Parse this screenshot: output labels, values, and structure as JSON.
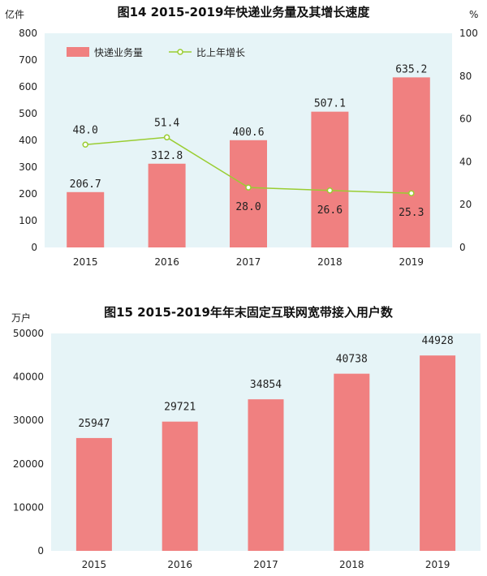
{
  "chart_data": [
    {
      "type": "bar+line",
      "title": "图14   2015-2019年快递业务量及其增长速度",
      "left_unit": "亿件",
      "right_unit": "%",
      "categories": [
        "2015",
        "2016",
        "2017",
        "2018",
        "2019"
      ],
      "series": [
        {
          "name": "快递业务量",
          "type": "bar",
          "axis": "left",
          "color": "#f08080",
          "values": [
            206.7,
            312.8,
            400.6,
            507.1,
            635.2
          ],
          "labels": [
            "206.7",
            "312.8",
            "400.6",
            "507.1",
            "635.2"
          ]
        },
        {
          "name": "比上年增长",
          "type": "line",
          "axis": "right",
          "color": "#9acd32",
          "values": [
            48.0,
            51.4,
            28.0,
            26.6,
            25.3
          ],
          "labels": [
            "48.0",
            "51.4",
            "28.0",
            "26.6",
            "25.3"
          ]
        }
      ],
      "ylim_left": [
        0,
        800
      ],
      "yticks_left": [
        "0",
        "100",
        "200",
        "300",
        "400",
        "500",
        "600",
        "700",
        "800"
      ],
      "ylim_right": [
        0,
        100
      ],
      "yticks_right": [
        "0",
        "20",
        "40",
        "60",
        "80",
        "100"
      ],
      "legend_position": "top-left",
      "background": "#e6f4f7"
    },
    {
      "type": "bar",
      "title": "图15  2015-2019年年末固定互联网宽带接入用户数",
      "ylabel": "万户",
      "categories": [
        "2015",
        "2016",
        "2017",
        "2018",
        "2019"
      ],
      "values": [
        25947,
        29721,
        34854,
        40738,
        44928
      ],
      "labels": [
        "25947",
        "29721",
        "34854",
        "40738",
        "44928"
      ],
      "ylim": [
        0,
        50000
      ],
      "yticks": [
        "0",
        "10000",
        "20000",
        "30000",
        "40000",
        "50000"
      ],
      "color": "#f08080",
      "background": "#e6f4f7"
    }
  ]
}
